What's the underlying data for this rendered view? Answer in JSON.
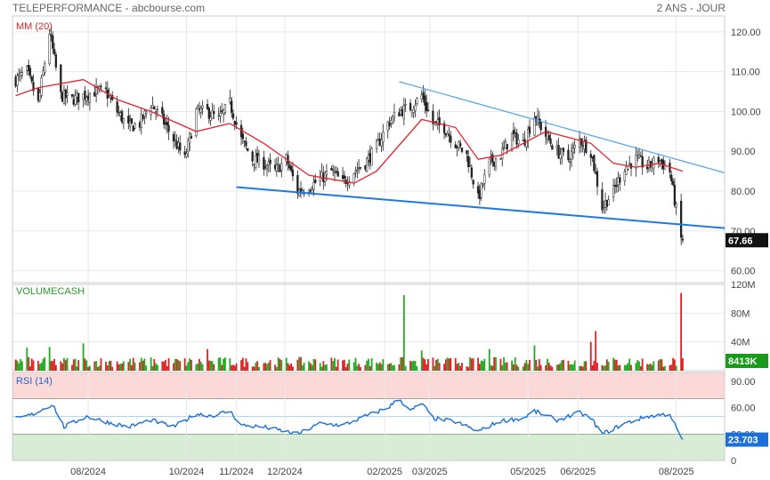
{
  "header": {
    "title": "TELEPERFORMANCE - abcbourse.com",
    "period": "2 ANS - JOUR"
  },
  "chart_data": [
    {
      "type": "candlestick",
      "indicator_label": "MM (20)",
      "y_ticks": [
        "120.00",
        "110.00",
        "100.00",
        "90.00",
        "80.00",
        "70.00",
        "60.00"
      ],
      "ylim": [
        57,
        124
      ],
      "last_price": "67.66",
      "trendlines": [
        {
          "name": "upper",
          "from": [
            "2025-02-10",
            107.5
          ],
          "to": [
            "2025-08-31",
            84.6
          ]
        },
        {
          "name": "lower",
          "from": [
            "2024-11-01",
            81
          ],
          "to": [
            "2025-08-31",
            70.7
          ]
        }
      ],
      "close_anchors": [
        [
          "2024-06-17",
          108
        ],
        [
          "2024-06-24",
          110
        ],
        [
          "2024-07-01",
          102
        ],
        [
          "2024-07-08",
          120
        ],
        [
          "2024-07-15",
          104
        ],
        [
          "2024-07-22",
          103
        ],
        [
          "2024-07-29",
          104
        ],
        [
          "2024-08-05",
          105
        ],
        [
          "2024-08-12",
          105
        ],
        [
          "2024-08-19",
          100
        ],
        [
          "2024-08-26",
          96
        ],
        [
          "2024-09-02",
          97
        ],
        [
          "2024-09-09",
          102
        ],
        [
          "2024-09-16",
          98
        ],
        [
          "2024-09-23",
          93
        ],
        [
          "2024-09-30",
          88
        ],
        [
          "2024-10-07",
          100
        ],
        [
          "2024-10-14",
          100
        ],
        [
          "2024-10-21",
          98
        ],
        [
          "2024-10-28",
          102
        ],
        [
          "2024-11-04",
          93
        ],
        [
          "2024-11-11",
          88
        ],
        [
          "2024-11-18",
          87
        ],
        [
          "2024-11-25",
          85
        ],
        [
          "2024-12-02",
          88
        ],
        [
          "2024-12-09",
          80
        ],
        [
          "2024-12-16",
          81
        ],
        [
          "2024-12-23",
          83
        ],
        [
          "2024-12-30",
          85
        ],
        [
          "2025-01-06",
          82
        ],
        [
          "2025-01-13",
          85
        ],
        [
          "2025-01-20",
          87
        ],
        [
          "2025-01-27",
          91
        ],
        [
          "2025-02-03",
          97
        ],
        [
          "2025-02-10",
          100
        ],
        [
          "2025-02-17",
          101
        ],
        [
          "2025-02-24",
          104
        ],
        [
          "2025-03-03",
          97
        ],
        [
          "2025-03-10",
          96
        ],
        [
          "2025-03-17",
          92
        ],
        [
          "2025-03-24",
          89
        ],
        [
          "2025-03-31",
          78
        ],
        [
          "2025-04-07",
          87
        ],
        [
          "2025-04-14",
          89
        ],
        [
          "2025-04-21",
          94
        ],
        [
          "2025-04-28",
          92
        ],
        [
          "2025-05-05",
          99
        ],
        [
          "2025-05-12",
          94
        ],
        [
          "2025-05-19",
          90
        ],
        [
          "2025-05-26",
          88
        ],
        [
          "2025-06-02",
          93
        ],
        [
          "2025-06-09",
          90
        ],
        [
          "2025-06-16",
          76
        ],
        [
          "2025-06-23",
          80
        ],
        [
          "2025-06-30",
          86
        ],
        [
          "2025-07-07",
          88
        ],
        [
          "2025-07-14",
          86
        ],
        [
          "2025-07-21",
          88
        ],
        [
          "2025-07-28",
          85
        ],
        [
          "2025-08-04",
          68
        ],
        [
          "2025-08-05",
          67.66
        ]
      ],
      "moving_average": [
        [
          "2024-06-17",
          104
        ],
        [
          "2024-07-01",
          106
        ],
        [
          "2024-07-29",
          108
        ],
        [
          "2024-08-19",
          103
        ],
        [
          "2024-09-09",
          100
        ],
        [
          "2024-10-07",
          95
        ],
        [
          "2024-10-28",
          97
        ],
        [
          "2024-11-18",
          92
        ],
        [
          "2024-12-16",
          84
        ],
        [
          "2025-01-13",
          82
        ],
        [
          "2025-01-27",
          85
        ],
        [
          "2025-02-24",
          98
        ],
        [
          "2025-03-17",
          96
        ],
        [
          "2025-03-31",
          88
        ],
        [
          "2025-04-14",
          89
        ],
        [
          "2025-05-12",
          95
        ],
        [
          "2025-06-09",
          92
        ],
        [
          "2025-06-23",
          87
        ],
        [
          "2025-07-07",
          86
        ],
        [
          "2025-07-21",
          87
        ],
        [
          "2025-08-05",
          85
        ]
      ]
    },
    {
      "type": "bar",
      "label": "VOLUMECASH",
      "y_ticks": [
        "120M",
        "80M",
        "40M"
      ],
      "ylim": [
        0,
        120
      ],
      "unit": "M",
      "last_value": "8413K",
      "spikes": [
        [
          "2024-06-24",
          32
        ],
        [
          "2024-07-08",
          33
        ],
        [
          "2024-07-29",
          38
        ],
        [
          "2024-10-14",
          30
        ],
        [
          "2025-02-13",
          105
        ],
        [
          "2025-02-24",
          28
        ],
        [
          "2025-04-07",
          30
        ],
        [
          "2025-05-05",
          35
        ],
        [
          "2025-06-09",
          40
        ],
        [
          "2025-06-12",
          55
        ],
        [
          "2025-08-04",
          108
        ]
      ]
    },
    {
      "type": "line",
      "label": "RSI (14)",
      "y_ticks": [
        "90.00",
        "60.00",
        "30.00",
        "0"
      ],
      "ylim": [
        0,
        100
      ],
      "last_value": "23.703",
      "levels": [
        70,
        50,
        30
      ],
      "values": [
        [
          "2024-06-17",
          47
        ],
        [
          "2024-06-27",
          52
        ],
        [
          "2024-07-10",
          64
        ],
        [
          "2024-07-17",
          38
        ],
        [
          "2024-07-31",
          50
        ],
        [
          "2024-08-12",
          44
        ],
        [
          "2024-08-26",
          38
        ],
        [
          "2024-09-09",
          46
        ],
        [
          "2024-09-23",
          38
        ],
        [
          "2024-10-07",
          53
        ],
        [
          "2024-10-17",
          51
        ],
        [
          "2024-10-28",
          56
        ],
        [
          "2024-11-04",
          40
        ],
        [
          "2024-11-18",
          38
        ],
        [
          "2024-12-09",
          30
        ],
        [
          "2024-12-23",
          42
        ],
        [
          "2025-01-06",
          40
        ],
        [
          "2025-01-20",
          50
        ],
        [
          "2025-02-03",
          60
        ],
        [
          "2025-02-10",
          70
        ],
        [
          "2025-02-17",
          56
        ],
        [
          "2025-02-24",
          65
        ],
        [
          "2025-03-03",
          48
        ],
        [
          "2025-03-17",
          44
        ],
        [
          "2025-03-31",
          33
        ],
        [
          "2025-04-14",
          45
        ],
        [
          "2025-04-28",
          48
        ],
        [
          "2025-05-05",
          56
        ],
        [
          "2025-05-19",
          46
        ],
        [
          "2025-06-02",
          54
        ],
        [
          "2025-06-09",
          48
        ],
        [
          "2025-06-16",
          30
        ],
        [
          "2025-06-30",
          42
        ],
        [
          "2025-07-14",
          50
        ],
        [
          "2025-07-28",
          53
        ],
        [
          "2025-08-04",
          25
        ],
        [
          "2025-08-05",
          23.7
        ]
      ]
    }
  ],
  "x_ticks": [
    {
      "label": "08/2024",
      "date": "2024-08-01"
    },
    {
      "label": "10/2024",
      "date": "2024-10-01"
    },
    {
      "label": "11/2024",
      "date": "2024-11-01"
    },
    {
      "label": "12/2024",
      "date": "2024-12-01"
    },
    {
      "label": "02/2025",
      "date": "2025-02-01"
    },
    {
      "label": "03/2025",
      "date": "2025-03-01"
    },
    {
      "label": "05/2025",
      "date": "2025-05-01"
    },
    {
      "label": "06/2025",
      "date": "2025-06-01"
    },
    {
      "label": "08/2025",
      "date": "2025-08-01"
    }
  ],
  "colors": {
    "up": "#22aa22",
    "down": "#dd2222",
    "ma": "#e8222e",
    "rsi": "#1a6fd8",
    "trend": "#3d8ee8",
    "grid": "#e8e8e8"
  }
}
